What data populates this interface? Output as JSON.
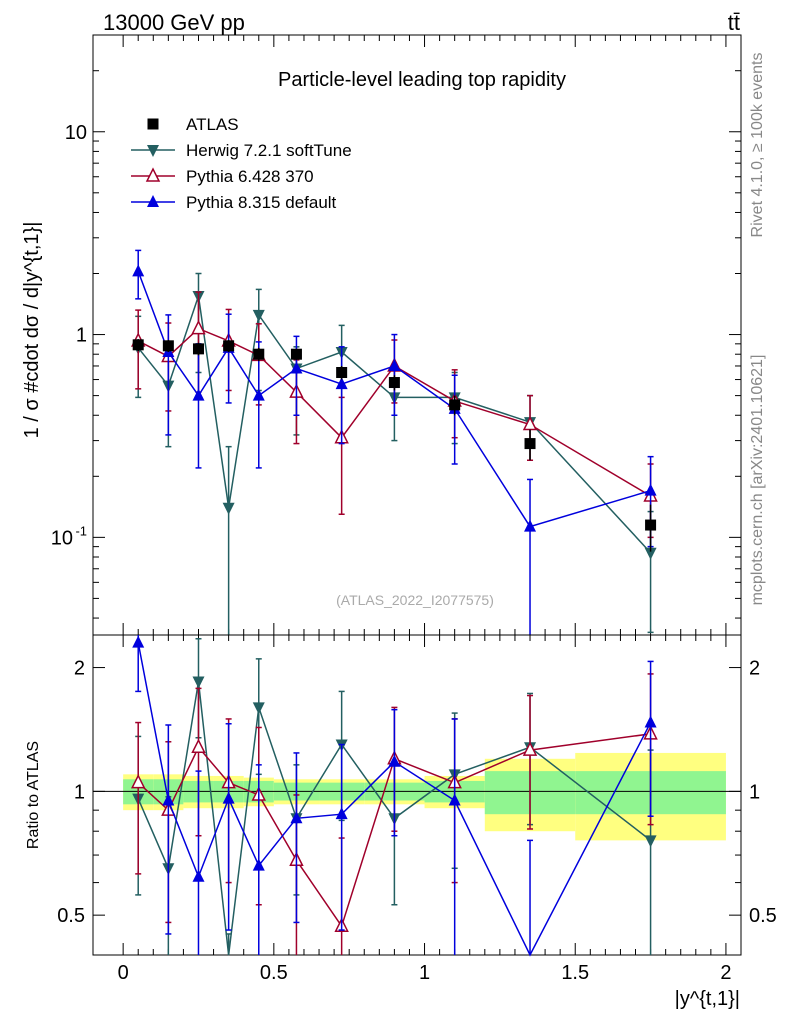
{
  "header": {
    "energy_label": "13000 GeV pp",
    "process_label": "tt̄"
  },
  "side_labels": {
    "rivet": "Rivet 4.1.0, ≥ 100k events",
    "source": "mcplots.cern.ch [arXiv:2401.10621]"
  },
  "chart_data": {
    "type": "scatter",
    "title": "Particle-level leading top rapidity",
    "watermark": "(ATLAS_2022_I2077575)",
    "xlabel": "|y^{t,1}|",
    "ylabel": "1 / σ #cdot dσ / d|y^{t,1}|",
    "ratio_ylabel": "Ratio to ATLAS",
    "xlim": [
      -0.1,
      2.05
    ],
    "ylim": [
      0.033,
      30
    ],
    "yscale": "log",
    "ratio_ylim": [
      0.4,
      2.4
    ],
    "ratio_yscale": "log",
    "x_ticks": [
      "0",
      "0.5",
      "1",
      "1.5",
      "2"
    ],
    "y_ticks": [
      "10^-1",
      "1",
      "10"
    ],
    "ratio_ticks": [
      "0.5",
      "1",
      "2"
    ],
    "bins": [
      [
        0,
        0.1
      ],
      [
        0.1,
        0.2
      ],
      [
        0.2,
        0.3
      ],
      [
        0.3,
        0.4
      ],
      [
        0.4,
        0.5
      ],
      [
        0.5,
        0.65
      ],
      [
        0.65,
        0.8
      ],
      [
        0.8,
        1.0
      ],
      [
        1.0,
        1.2
      ],
      [
        1.2,
        1.5
      ],
      [
        1.5,
        2.0
      ]
    ],
    "x": [
      0.05,
      0.15,
      0.25,
      0.35,
      0.45,
      0.575,
      0.725,
      0.9,
      1.1,
      1.35,
      1.75
    ],
    "reference": {
      "name": "ATLAS",
      "values": [
        0.89,
        0.88,
        0.85,
        0.88,
        0.8,
        0.8,
        0.65,
        0.58,
        0.45,
        0.29,
        0.115
      ],
      "err_lo": [
        0.06,
        0.06,
        0.06,
        0.06,
        0.06,
        0.05,
        0.05,
        0.05,
        0.05,
        0.05,
        0.03
      ],
      "err_hi": [
        0.06,
        0.06,
        0.06,
        0.06,
        0.06,
        0.05,
        0.05,
        0.05,
        0.05,
        0.05,
        0.03
      ],
      "band_inner": [
        0.07,
        0.07,
        0.06,
        0.06,
        0.06,
        0.05,
        0.05,
        0.05,
        0.06,
        0.12,
        0.12
      ],
      "band_outer": [
        0.1,
        0.1,
        0.09,
        0.09,
        0.08,
        0.07,
        0.07,
        0.07,
        0.09,
        0.2,
        0.24
      ]
    },
    "series": [
      {
        "name": "Herwig 7.2.1 softTune",
        "color": "#235f61",
        "marker": "triangle-down",
        "values": [
          0.86,
          0.56,
          1.55,
          0.14,
          1.25,
          0.68,
          0.82,
          0.49,
          0.49,
          0.37,
          0.084
        ],
        "err_lo": [
          0.37,
          0.28,
          0.9,
          0.12,
          0.72,
          0.36,
          0.52,
          0.19,
          0.2,
          0.13,
          0.05
        ],
        "err_hi": [
          0.37,
          0.28,
          0.45,
          0.14,
          0.42,
          0.19,
          0.29,
          0.19,
          0.16,
          0.13,
          0.05
        ],
        "ratio": [
          0.96,
          0.65,
          1.85,
          0.15,
          1.6,
          0.86,
          1.3,
          0.86,
          1.1,
          1.28,
          0.76
        ],
        "ratio_err": [
          0.4,
          0.32,
          0.5,
          0.3,
          0.5,
          0.3,
          0.45,
          0.33,
          0.45,
          0.45,
          0.5
        ]
      },
      {
        "name": "Pythia 6.428 370",
        "color": "#a0002b",
        "marker": "triangle-open",
        "values": [
          0.93,
          0.78,
          1.07,
          0.93,
          0.79,
          0.52,
          0.31,
          0.7,
          0.47,
          0.36,
          0.16
        ],
        "err_lo": [
          0.39,
          0.36,
          0.55,
          0.4,
          0.34,
          0.23,
          0.18,
          0.24,
          0.16,
          0.12,
          0.06
        ],
        "err_hi": [
          0.39,
          0.36,
          0.55,
          0.4,
          0.34,
          0.23,
          0.18,
          0.24,
          0.2,
          0.14,
          0.07
        ],
        "ratio": [
          1.05,
          0.9,
          1.28,
          1.05,
          0.98,
          0.68,
          0.47,
          1.2,
          1.05,
          1.26,
          1.38
        ],
        "ratio_err": [
          0.42,
          0.42,
          0.5,
          0.45,
          0.45,
          0.3,
          0.3,
          0.4,
          0.45,
          0.45,
          0.55
        ]
      },
      {
        "name": "Pythia 8.315 default",
        "color": "#0000dd",
        "marker": "triangle-up",
        "values": [
          2.05,
          0.82,
          0.5,
          0.86,
          0.5,
          0.68,
          0.57,
          0.7,
          0.43,
          0.113,
          0.17
        ],
        "err_lo": [
          0.55,
          0.5,
          0.28,
          0.4,
          0.28,
          0.28,
          0.28,
          0.3,
          0.2,
          0.08,
          0.08
        ],
        "err_hi": [
          0.55,
          0.43,
          0.4,
          0.4,
          0.42,
          0.3,
          0.3,
          0.3,
          0.2,
          0.08,
          0.08
        ],
        "ratio": [
          2.3,
          0.95,
          0.62,
          0.96,
          0.66,
          0.86,
          0.88,
          1.18,
          0.95,
          0.36,
          1.47
        ],
        "ratio_err": [
          0.55,
          0.5,
          0.5,
          0.5,
          0.5,
          0.38,
          0.42,
          0.4,
          0.55,
          0.4,
          0.6
        ]
      }
    ]
  }
}
